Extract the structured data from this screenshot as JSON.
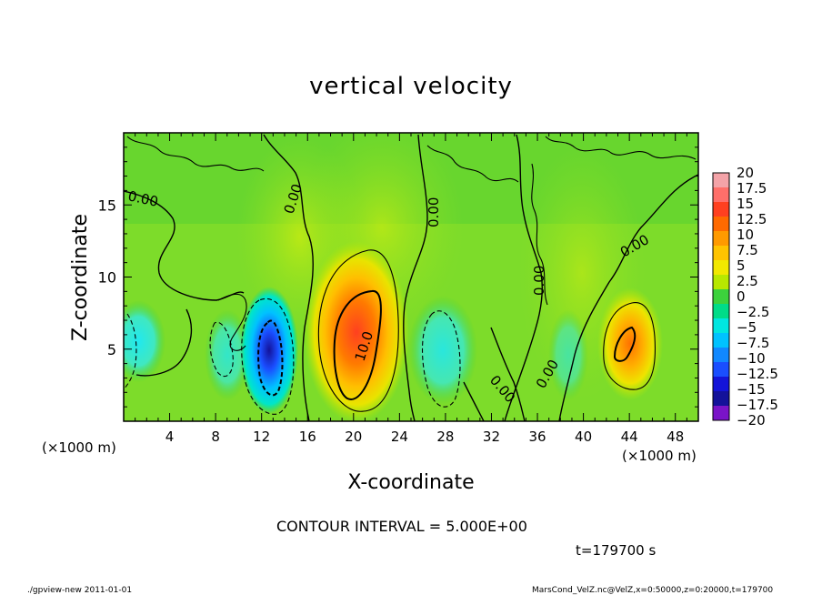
{
  "chart_data": {
    "type": "heatmap",
    "title": "vertical velocity",
    "xlabel": "X-coordinate",
    "ylabel": "Z-coordinate",
    "x_unit_left": "(×1000 m)",
    "x_unit_right": "(×1000 m)",
    "xlim": [
      0,
      50
    ],
    "ylim": [
      0,
      20
    ],
    "x_ticks": [
      "4",
      "8",
      "12",
      "16",
      "20",
      "24",
      "28",
      "32",
      "36",
      "40",
      "44",
      "48"
    ],
    "y_ticks": [
      "5",
      "10",
      "15"
    ],
    "colorbar": {
      "labels": [
        "20",
        "17.5",
        "15",
        "12.5",
        "10",
        "7.5",
        "5",
        "2.5",
        "0",
        "−2.5",
        "−5",
        "−7.5",
        "−10",
        "−12.5",
        "−15",
        "−17.5",
        "−20"
      ],
      "colors": [
        "#f4a3a8",
        "#ff6f6a",
        "#ff4020",
        "#ff6a00",
        "#ff9a00",
        "#ffc400",
        "#f2e800",
        "#b8e800",
        "#3cd23c",
        "#00dc88",
        "#00e6e0",
        "#00c2ff",
        "#1188ff",
        "#1a4eff",
        "#1414d8",
        "#14129a",
        "#7a14c8"
      ]
    },
    "contour_labels": [
      "0.00",
      "0.00",
      "0.00",
      "0.00",
      "0.00",
      "0.00",
      "0.00",
      "10.0"
    ],
    "contour_interval_text": "CONTOUR INTERVAL = 5.000E+00",
    "time_text": "t=179700 s",
    "footer_left": "./gpview-new   2011-01-01",
    "footer_right": "MarsCond_VelZ.nc@VelZ,x=0:50000,z=0:20000,t=179700",
    "features": [
      {
        "kind": "updraft",
        "x": 20,
        "z": 5,
        "peak": 12.5
      },
      {
        "kind": "updraft",
        "x": 44,
        "z": 5.5,
        "peak": 11
      },
      {
        "kind": "downdraft",
        "x": 12.5,
        "z": 4.5,
        "peak": -15
      },
      {
        "kind": "downdraft",
        "x": 1,
        "z": 6,
        "peak": -5
      },
      {
        "kind": "downdraft",
        "x": 27.5,
        "z": 5,
        "peak": -4
      }
    ]
  }
}
